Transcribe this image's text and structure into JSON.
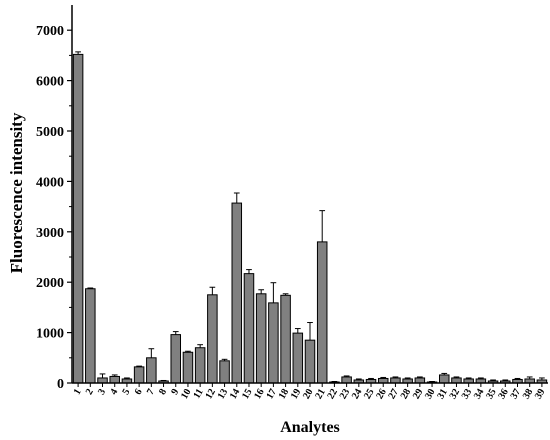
{
  "chart_data": {
    "type": "bar",
    "title": "",
    "xlabel": "Analytes",
    "ylabel": "Fluorescence intensity",
    "ylim": [
      0,
      7500
    ],
    "yticks": [
      0,
      1000,
      2000,
      3000,
      4000,
      5000,
      6000,
      7000
    ],
    "ytick_labels": [
      "0",
      "1000",
      "2000",
      "3000",
      "4000",
      "5000",
      "6000",
      "7000"
    ],
    "categories": [
      "1",
      "2",
      "3",
      "4",
      "5",
      "6",
      "7",
      "8",
      "9",
      "10",
      "11",
      "12",
      "13",
      "14",
      "15",
      "16",
      "17",
      "18",
      "19",
      "20",
      "21",
      "22",
      "23",
      "24",
      "25",
      "26",
      "27",
      "28",
      "29",
      "30",
      "31",
      "32",
      "33",
      "34",
      "35",
      "36",
      "37",
      "38",
      "39"
    ],
    "values": [
      6520,
      1870,
      100,
      130,
      80,
      320,
      500,
      40,
      960,
      610,
      700,
      1750,
      440,
      3570,
      2170,
      1770,
      1590,
      1740,
      990,
      850,
      2800,
      20,
      120,
      60,
      70,
      90,
      100,
      80,
      100,
      20,
      160,
      100,
      80,
      80,
      40,
      40,
      70,
      80,
      60
    ],
    "errors": [
      50,
      15,
      80,
      30,
      20,
      15,
      180,
      10,
      60,
      20,
      60,
      150,
      30,
      200,
      80,
      80,
      400,
      30,
      90,
      350,
      620,
      10,
      20,
      20,
      20,
      20,
      20,
      20,
      20,
      10,
      30,
      20,
      20,
      20,
      20,
      20,
      20,
      40,
      40
    ],
    "grid": false,
    "bar_color": "#808080",
    "edge_color": "#000000"
  }
}
